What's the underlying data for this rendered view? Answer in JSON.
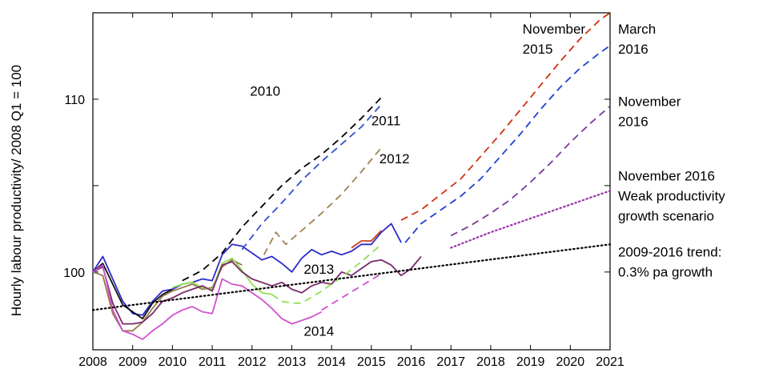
{
  "chart_data": {
    "type": "line",
    "title": "",
    "xlabel": "",
    "ylabel": "Hourly labour productivity/ 2008 Q1 = 100",
    "xlim": [
      2008,
      2021
    ],
    "ylim": [
      95.5,
      115
    ],
    "xticks": [
      "2008",
      "2009",
      "2010",
      "2011",
      "2012",
      "2013",
      "2014",
      "2015",
      "2016",
      "2017",
      "2018",
      "2019",
      "2020",
      "2021"
    ],
    "yticks": [
      "100",
      "110"
    ],
    "grid": false,
    "legend": "none",
    "series": [
      {
        "name": "",
        "key": "actual_dark_blue",
        "color": "#2c2ccc",
        "dash": "solid",
        "points": [
          [
            2008,
            100
          ],
          [
            2008.25,
            100.9
          ],
          [
            2008.5,
            99.6
          ],
          [
            2008.75,
            98.3
          ],
          [
            2009,
            97.6
          ],
          [
            2009.25,
            97.5
          ],
          [
            2009.5,
            98.3
          ],
          [
            2009.75,
            98.9
          ],
          [
            2010,
            99.0
          ],
          [
            2010.25,
            99.3
          ],
          [
            2010.5,
            99.4
          ],
          [
            2010.75,
            99.6
          ],
          [
            2011,
            99.5
          ],
          [
            2011.25,
            101.0
          ],
          [
            2011.5,
            101.6
          ],
          [
            2011.75,
            101.5
          ],
          [
            2012,
            101.1
          ],
          [
            2012.25,
            100.7
          ],
          [
            2012.5,
            100.9
          ],
          [
            2012.75,
            100.5
          ],
          [
            2013,
            100.0
          ],
          [
            2013.25,
            100.8
          ],
          [
            2013.5,
            101.3
          ],
          [
            2013.75,
            101.0
          ],
          [
            2014,
            101.2
          ],
          [
            2014.25,
            101.0
          ],
          [
            2014.5,
            101.2
          ],
          [
            2014.75,
            101.6
          ],
          [
            2015,
            101.6
          ],
          [
            2015.25,
            102.3
          ],
          [
            2015.5,
            102.8
          ],
          [
            2015.75,
            101.7
          ]
        ]
      },
      {
        "name": "",
        "key": "actual_red",
        "color": "#c84020",
        "dash": "solid",
        "points": [
          [
            2014.5,
            101.4
          ],
          [
            2014.75,
            101.8
          ],
          [
            2015,
            101.8
          ],
          [
            2015.25,
            102.4
          ]
        ]
      },
      {
        "name": "",
        "key": "actual_black",
        "color": "#111111",
        "dash": "solid",
        "points": [
          [
            2008,
            100
          ],
          [
            2008.25,
            100.5
          ],
          [
            2008.5,
            99.3
          ],
          [
            2008.75,
            98.1
          ],
          [
            2009,
            97.7
          ],
          [
            2009.25,
            97.3
          ],
          [
            2009.5,
            98.2
          ],
          [
            2009.75,
            98.7
          ],
          [
            2010,
            99.0
          ]
        ]
      },
      {
        "name": "",
        "key": "actual_brown",
        "color": "#9a7a4a",
        "dash": "solid",
        "points": [
          [
            2008,
            100
          ],
          [
            2008.25,
            99.8
          ],
          [
            2008.5,
            97.6
          ],
          [
            2008.75,
            96.6
          ],
          [
            2009,
            96.6
          ],
          [
            2009.25,
            97.1
          ],
          [
            2009.5,
            97.9
          ],
          [
            2009.75,
            98.6
          ],
          [
            2010,
            98.9
          ],
          [
            2010.25,
            99.1
          ],
          [
            2010.5,
            99.3
          ],
          [
            2010.75,
            99.0
          ],
          [
            2011,
            99.1
          ],
          [
            2011.25,
            100.3
          ],
          [
            2011.5,
            100.7
          ],
          [
            2011.75,
            100.4
          ]
        ]
      },
      {
        "name": "",
        "key": "actual_green",
        "color": "#90e050",
        "dash": "solid",
        "points": [
          [
            2010,
            99.1
          ],
          [
            2010.25,
            99.3
          ],
          [
            2010.5,
            99.4
          ],
          [
            2010.75,
            99.1
          ],
          [
            2011,
            99.0
          ],
          [
            2011.25,
            100.5
          ],
          [
            2011.5,
            100.8
          ],
          [
            2011.75,
            100.1
          ],
          [
            2012,
            99.3
          ],
          [
            2012.25,
            98.8
          ],
          [
            2012.5,
            98.7
          ]
        ]
      },
      {
        "name": "",
        "key": "actual_purple",
        "color": "#7a2a6a",
        "dash": "solid",
        "points": [
          [
            2008,
            100
          ],
          [
            2008.25,
            100.3
          ],
          [
            2008.5,
            98.2
          ],
          [
            2008.75,
            97.0
          ],
          [
            2009,
            97.0
          ],
          [
            2009.25,
            97.1
          ],
          [
            2009.5,
            97.6
          ],
          [
            2009.75,
            98.3
          ],
          [
            2010,
            98.5
          ],
          [
            2010.25,
            98.8
          ],
          [
            2010.5,
            99.0
          ],
          [
            2010.75,
            99.2
          ],
          [
            2011,
            98.9
          ],
          [
            2011.25,
            100.4
          ],
          [
            2011.5,
            100.6
          ],
          [
            2011.75,
            100.0
          ],
          [
            2012,
            99.6
          ],
          [
            2012.25,
            99.4
          ],
          [
            2012.5,
            99.2
          ],
          [
            2012.75,
            99.4
          ],
          [
            2013,
            99.0
          ],
          [
            2013.25,
            98.8
          ],
          [
            2013.5,
            99.2
          ],
          [
            2013.75,
            99.4
          ],
          [
            2014,
            99.3
          ],
          [
            2014.25,
            100.0
          ],
          [
            2014.5,
            99.8
          ],
          [
            2014.75,
            100.2
          ],
          [
            2015,
            100.6
          ],
          [
            2015.25,
            100.7
          ],
          [
            2015.5,
            100.4
          ],
          [
            2015.75,
            99.8
          ],
          [
            2016,
            100.2
          ],
          [
            2016.25,
            100.9
          ]
        ]
      },
      {
        "name": "",
        "key": "actual_magenta",
        "color": "#d050d0",
        "dash": "solid",
        "points": [
          [
            2008,
            100
          ],
          [
            2008.25,
            100.4
          ],
          [
            2008.5,
            97.8
          ],
          [
            2008.75,
            96.6
          ],
          [
            2009,
            96.4
          ],
          [
            2009.25,
            96.1
          ],
          [
            2009.5,
            96.6
          ],
          [
            2009.75,
            97.0
          ],
          [
            2010,
            97.5
          ],
          [
            2010.25,
            97.8
          ],
          [
            2010.5,
            98.0
          ],
          [
            2010.75,
            97.7
          ],
          [
            2011,
            97.6
          ],
          [
            2011.25,
            99.6
          ],
          [
            2011.5,
            99.3
          ],
          [
            2011.75,
            99.2
          ],
          [
            2012,
            98.8
          ],
          [
            2012.25,
            98.4
          ],
          [
            2012.5,
            97.9
          ],
          [
            2012.75,
            97.3
          ],
          [
            2013,
            97.0
          ],
          [
            2013.25,
            97.2
          ],
          [
            2013.5,
            97.4
          ],
          [
            2013.75,
            97.7
          ]
        ]
      },
      {
        "name": "2010",
        "key": "f2010",
        "color": "#000000",
        "dash": "dashed",
        "points": [
          [
            2010.25,
            99.5
          ],
          [
            2010.75,
            100.1
          ],
          [
            2011.25,
            101.1
          ],
          [
            2011.75,
            102.6
          ],
          [
            2012.25,
            103.8
          ],
          [
            2012.75,
            105.0
          ],
          [
            2013.25,
            106.0
          ],
          [
            2013.75,
            106.8
          ],
          [
            2014.25,
            107.8
          ],
          [
            2014.75,
            108.9
          ],
          [
            2015.25,
            110.1
          ]
        ]
      },
      {
        "name": "2011",
        "key": "f2011",
        "color": "#3050d0",
        "dash": "dashed",
        "points": [
          [
            2011.75,
            101.3
          ],
          [
            2012.25,
            102.8
          ],
          [
            2012.75,
            104.0
          ],
          [
            2013.25,
            105.3
          ],
          [
            2013.75,
            106.4
          ],
          [
            2014.25,
            107.4
          ],
          [
            2014.75,
            108.4
          ],
          [
            2015.25,
            109.7
          ]
        ]
      },
      {
        "name": "2012",
        "key": "f2012",
        "color": "#a08050",
        "dash": "dashed",
        "points": [
          [
            2012.3,
            101.0
          ],
          [
            2012.6,
            102.3
          ],
          [
            2012.85,
            101.6
          ],
          [
            2013.25,
            102.4
          ],
          [
            2013.75,
            103.4
          ],
          [
            2014.25,
            104.5
          ],
          [
            2014.75,
            105.8
          ],
          [
            2015.25,
            107.2
          ]
        ]
      },
      {
        "name": "2013",
        "key": "f2013",
        "color": "#90e050",
        "dash": "dashed",
        "points": [
          [
            2012.5,
            98.7
          ],
          [
            2012.75,
            98.3
          ],
          [
            2013,
            98.2
          ],
          [
            2013.25,
            98.2
          ],
          [
            2013.75,
            98.9
          ],
          [
            2014.25,
            99.7
          ],
          [
            2014.75,
            100.6
          ],
          [
            2015.25,
            101.6
          ]
        ]
      },
      {
        "name": "2014",
        "key": "f2014",
        "color": "#d050d0",
        "dash": "dashed",
        "points": [
          [
            2013.75,
            97.8
          ],
          [
            2014.25,
            98.5
          ],
          [
            2014.75,
            99.2
          ],
          [
            2015.25,
            99.9
          ]
        ]
      },
      {
        "name": "November 2015",
        "key": "fnov2015",
        "color": "#d03010",
        "dash": "dashed",
        "points": [
          [
            2015.75,
            103.0
          ],
          [
            2016.25,
            103.6
          ],
          [
            2016.75,
            104.5
          ],
          [
            2017.25,
            105.4
          ],
          [
            2017.75,
            106.7
          ],
          [
            2018.25,
            108.0
          ],
          [
            2018.75,
            109.4
          ],
          [
            2019.25,
            110.8
          ],
          [
            2019.75,
            112.2
          ],
          [
            2020.25,
            113.5
          ],
          [
            2020.75,
            114.6
          ],
          [
            2021,
            115.0
          ]
        ]
      },
      {
        "name": "March 2016",
        "key": "fmar2016",
        "color": "#2040d0",
        "dash": "dashed",
        "points": [
          [
            2015.85,
            101.7
          ],
          [
            2016.25,
            102.8
          ],
          [
            2016.75,
            103.6
          ],
          [
            2017.25,
            104.4
          ],
          [
            2017.75,
            105.4
          ],
          [
            2018.25,
            106.7
          ],
          [
            2018.75,
            108.0
          ],
          [
            2019.25,
            109.4
          ],
          [
            2019.75,
            110.7
          ],
          [
            2020.25,
            111.8
          ],
          [
            2020.75,
            112.7
          ],
          [
            2021,
            113.1
          ]
        ]
      },
      {
        "name": "November 2016",
        "key": "fnov2016",
        "color": "#7a3a9a",
        "dash": "dashed",
        "points": [
          [
            2017,
            102.1
          ],
          [
            2017.5,
            102.7
          ],
          [
            2018,
            103.4
          ],
          [
            2018.5,
            104.2
          ],
          [
            2019,
            105.2
          ],
          [
            2019.5,
            106.3
          ],
          [
            2020,
            107.5
          ],
          [
            2020.5,
            108.6
          ],
          [
            2021,
            109.6
          ]
        ]
      },
      {
        "name": "November 2016 Weak productivity growth scenario",
        "key": "fweak",
        "color": "#9a30aa",
        "dash": "dotted",
        "points": [
          [
            2017,
            101.4
          ],
          [
            2018,
            102.3
          ],
          [
            2019,
            103.1
          ],
          [
            2020,
            103.9
          ],
          [
            2021,
            104.7
          ]
        ]
      },
      {
        "name": "2009-2016 trend: 0.3% pa growth",
        "key": "trend",
        "color": "#000000",
        "dash": "dotted",
        "points": [
          [
            2008,
            97.8
          ],
          [
            2021,
            101.6
          ]
        ]
      }
    ],
    "annotations": [
      {
        "key": "a2010",
        "lines": [
          "2010"
        ],
        "x": 2011.95,
        "y": 110.2
      },
      {
        "key": "a2011",
        "lines": [
          "2011"
        ],
        "x": 2015.0,
        "y": 108.5
      },
      {
        "key": "a2012",
        "lines": [
          "2012"
        ],
        "x": 2015.2,
        "y": 106.3
      },
      {
        "key": "a2013",
        "lines": [
          "2013"
        ],
        "x": 2013.3,
        "y": 99.9
      },
      {
        "key": "a2014",
        "lines": [
          "2014"
        ],
        "x": 2013.3,
        "y": 96.3
      },
      {
        "key": "anov2015",
        "lines": [
          "November",
          "2015"
        ],
        "x": 2018.8,
        "y": 113.8
      },
      {
        "key": "amar2016",
        "lines": [
          "March",
          "2016"
        ],
        "x": 2021.2,
        "y": 113.8
      },
      {
        "key": "anov2016",
        "lines": [
          "November",
          "2016"
        ],
        "x": 2021.2,
        "y": 109.6
      },
      {
        "key": "aweak",
        "lines": [
          "November 2016",
          "Weak productivity",
          "growth scenario"
        ],
        "x": 2021.2,
        "y": 105.3
      },
      {
        "key": "atrend",
        "lines": [
          "2009-2016 trend:",
          "0.3% pa growth"
        ],
        "x": 2021.2,
        "y": 100.9
      }
    ]
  }
}
